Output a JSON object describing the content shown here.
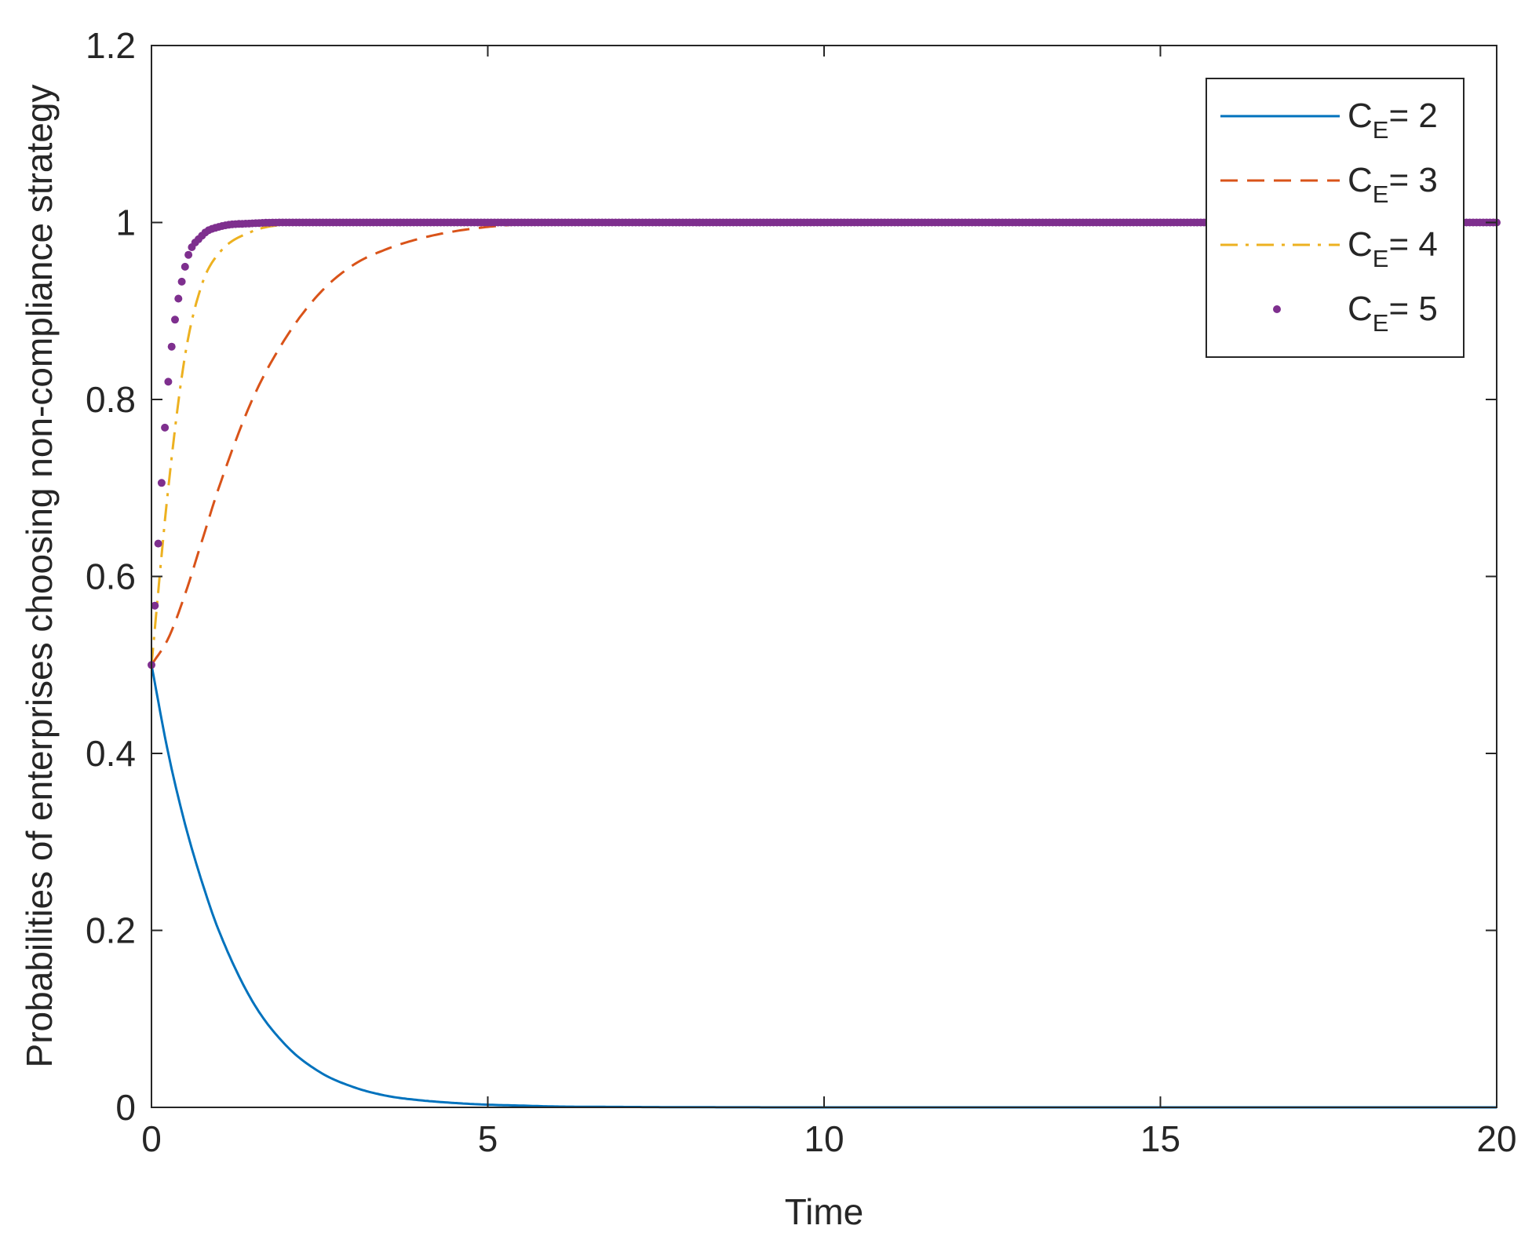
{
  "chart_data": {
    "type": "line",
    "title": "",
    "xlabel": "Time",
    "ylabel": "Probabilities of enterprises choosing non-compliance strategy",
    "xlim": [
      0,
      20
    ],
    "ylim": [
      0,
      1.2
    ],
    "xticks": [
      "0",
      "5",
      "10",
      "15",
      "20"
    ],
    "yticks": [
      "0",
      "0.2",
      "0.4",
      "0.6",
      "0.8",
      "1",
      "1.2"
    ],
    "grid": false,
    "legend_position": "top-right",
    "x": [
      0,
      0.25,
      0.5,
      0.75,
      1,
      1.5,
      2,
      2.5,
      3,
      3.5,
      4,
      4.5,
      5,
      5.5,
      6,
      7,
      8,
      10,
      12,
      14,
      16,
      18,
      20
    ],
    "series": [
      {
        "name": "C = 2",
        "legend": {
          "base": "C",
          "sub": "E",
          "rest": "= 2"
        },
        "color": "#0072BD",
        "style": "solid",
        "values": [
          0.5,
          0.4,
          0.32,
          0.255,
          0.2,
          0.12,
          0.07,
          0.04,
          0.023,
          0.013,
          0.008,
          0.005,
          0.003,
          0.002,
          0.001,
          0.0005,
          0.0002,
          0,
          0,
          0,
          0,
          0,
          0
        ]
      },
      {
        "name": "C = 3",
        "legend": {
          "base": "C",
          "sub": "E",
          "rest": "= 3"
        },
        "color": "#D95319",
        "style": "dashed",
        "values": [
          0.5,
          0.53,
          0.58,
          0.64,
          0.7,
          0.8,
          0.87,
          0.92,
          0.952,
          0.97,
          0.982,
          0.99,
          0.995,
          0.998,
          0.999,
          1,
          1,
          1,
          1,
          1,
          1,
          1,
          1
        ]
      },
      {
        "name": "C = 4",
        "legend": {
          "base": "C",
          "sub": "E",
          "rest": "= 4"
        },
        "color": "#EDB120",
        "style": "dashdot",
        "values": [
          0.5,
          0.7,
          0.85,
          0.93,
          0.965,
          0.99,
          0.998,
          1,
          1,
          1,
          1,
          1,
          1,
          1,
          1,
          1,
          1,
          1,
          1,
          1,
          1,
          1,
          1
        ]
      },
      {
        "name": "C = 5",
        "legend": {
          "base": "C",
          "sub": "E",
          "rest": "= 5"
        },
        "color": "#7E2F8E",
        "style": "dots",
        "values": [
          0.5,
          0.82,
          0.95,
          0.985,
          0.995,
          0.999,
          1,
          1,
          1,
          1,
          1,
          1,
          1,
          1,
          1,
          1,
          1,
          1,
          1,
          1,
          1,
          1,
          1
        ]
      }
    ]
  }
}
